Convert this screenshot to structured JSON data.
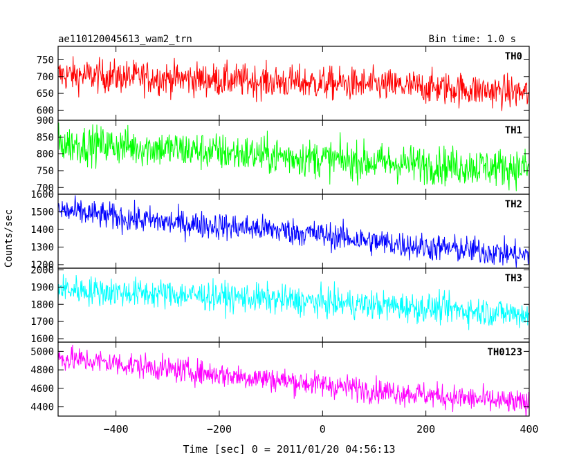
{
  "header": {
    "title": "ae110120045613_wam2_trn",
    "bin_time": "Bin time: 1.0 s"
  },
  "axes": {
    "ylabel": "Counts/sec",
    "xlabel": "Time [sec] 0 = 2011/01/20 04:56:13",
    "x_ticks": [
      "−400",
      "−200",
      "0",
      "200",
      "400"
    ]
  },
  "chart_data": {
    "type": "line",
    "x_range": [
      -512,
      400
    ],
    "x_tick_values": [
      -400,
      -200,
      0,
      200,
      400
    ],
    "xlabel": "Time [sec] 0 = 2011/01/20 04:56:13",
    "ylabel": "Counts/sec",
    "title": "ae110120045613_wam2_trn",
    "bin_time_s": 1.0,
    "grid": false,
    "panels": [
      {
        "name": "TH0",
        "color": "#ff0000",
        "ylim": [
          570,
          790
        ],
        "y_ticks": [
          600,
          650,
          700,
          750
        ],
        "x": [
          -512,
          -400,
          -300,
          -200,
          -100,
          0,
          100,
          200,
          300,
          400
        ],
        "values": [
          705,
          700,
          695,
          690,
          685,
          680,
          675,
          668,
          660,
          650
        ],
        "noise": 35
      },
      {
        "name": "TH1",
        "color": "#00ff00",
        "ylim": [
          680,
          900
        ],
        "y_ticks": [
          700,
          750,
          800,
          850,
          900
        ],
        "x": [
          -512,
          -400,
          -300,
          -200,
          -100,
          0,
          100,
          200,
          300,
          400
        ],
        "values": [
          830,
          825,
          815,
          805,
          795,
          785,
          775,
          768,
          762,
          758
        ],
        "noise": 40
      },
      {
        "name": "TH2",
        "color": "#0000ff",
        "ylim": [
          1180,
          1600
        ],
        "y_ticks": [
          1200,
          1300,
          1400,
          1500,
          1600
        ],
        "x": [
          -512,
          -400,
          -300,
          -200,
          -100,
          0,
          100,
          200,
          300,
          400
        ],
        "values": [
          1510,
          1470,
          1440,
          1420,
          1400,
          1370,
          1330,
          1300,
          1280,
          1250
        ],
        "noise": 55
      },
      {
        "name": "TH3",
        "color": "#00ffff",
        "ylim": [
          1580,
          2010
        ],
        "y_ticks": [
          1600,
          1700,
          1800,
          1900,
          2000
        ],
        "x": [
          -512,
          -400,
          -300,
          -200,
          -100,
          0,
          100,
          200,
          300,
          400
        ],
        "values": [
          1890,
          1870,
          1860,
          1845,
          1830,
          1810,
          1795,
          1780,
          1760,
          1740
        ],
        "noise": 60
      },
      {
        "name": "TH0123",
        "color": "#ff00ff",
        "ylim": [
          4300,
          5100
        ],
        "y_ticks": [
          4400,
          4600,
          4800,
          5000
        ],
        "x": [
          -512,
          -400,
          -300,
          -200,
          -100,
          0,
          100,
          200,
          300,
          400
        ],
        "values": [
          4930,
          4870,
          4810,
          4750,
          4700,
          4640,
          4580,
          4530,
          4480,
          4430
        ],
        "noise": 95
      }
    ]
  }
}
